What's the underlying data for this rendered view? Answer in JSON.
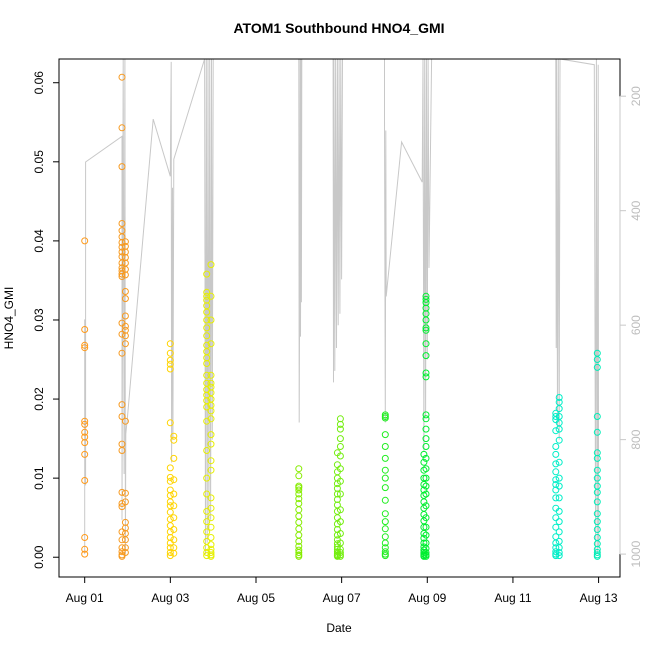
{
  "chart_data": {
    "type": "scatter",
    "title": "ATOM1 Southbound HNO4_GMI",
    "xlabel": "Date",
    "ylabel": "HNO4_GMI",
    "x_ticks": [
      "Aug 01",
      "Aug 03",
      "Aug 05",
      "Aug 07",
      "Aug 09",
      "Aug 11",
      "Aug 13"
    ],
    "x_tick_days": [
      1,
      3,
      5,
      7,
      9,
      11,
      13
    ],
    "xlim_days": [
      0.4,
      13.5
    ],
    "ylim": [
      -0.0025,
      0.063
    ],
    "y_ticks": [
      0.0,
      0.01,
      0.02,
      0.03,
      0.04,
      0.05,
      0.06
    ],
    "y_tick_labels": [
      "0.00",
      "0.01",
      "0.02",
      "0.03",
      "0.04",
      "0.05",
      "0.06"
    ],
    "y2_label": "",
    "y2_ticks": [
      200,
      400,
      600,
      800,
      1000
    ],
    "y2_lim": [
      1040,
      135
    ],
    "grid": false,
    "colors": {
      "pressure_line": "#c8c8c8",
      "aug01": "#ff9a1a",
      "aug02": "#f79a20",
      "aug03": "#ffd400",
      "aug04": "#e6ef00",
      "aug06": "#86ec00",
      "aug07": "#74ee10",
      "aug08": "#20ee20",
      "aug09": "#00ee30",
      "aug12": "#00eec8",
      "aug13": "#00eeb8"
    },
    "series": [
      {
        "day": 1.0,
        "color_key": "aug01",
        "y": [
          0.04,
          0.0288,
          0.0268,
          0.0265,
          0.0172,
          0.0168,
          0.0158,
          0.0152,
          0.0145,
          0.013,
          0.0097,
          0.0025,
          0.001,
          0.0004
        ]
      },
      {
        "day": 1.87,
        "color_key": "aug02",
        "y": [
          0.0607,
          0.0543,
          0.0494,
          0.0422,
          0.0413,
          0.0405,
          0.0398,
          0.0392,
          0.0386,
          0.038,
          0.0372,
          0.0366,
          0.0362,
          0.0358,
          0.0355,
          0.0296,
          0.0282,
          0.0258,
          0.0193,
          0.0178,
          0.0143,
          0.0135,
          0.0082,
          0.0068,
          0.0064,
          0.0032,
          0.0022,
          0.0012,
          0.0007,
          0.0003,
          0.0001
        ]
      },
      {
        "day": 1.95,
        "color_key": "aug02",
        "y": [
          0.0399,
          0.0393,
          0.0386,
          0.0379,
          0.0372,
          0.0364,
          0.0357,
          0.0336,
          0.0327,
          0.0305,
          0.0292,
          0.0287,
          0.028,
          0.027,
          0.0172,
          0.0081,
          0.007,
          0.0044,
          0.0037,
          0.003,
          0.0022,
          0.0012,
          0.0006
        ]
      },
      {
        "day": 3.0,
        "color_key": "aug03",
        "y": [
          0.027,
          0.0258,
          0.0249,
          0.0244,
          0.0238,
          0.017,
          0.0113,
          0.0101,
          0.0096,
          0.0085,
          0.0078,
          0.007,
          0.0065,
          0.0057,
          0.0048,
          0.004,
          0.0032,
          0.0025,
          0.0018,
          0.0012,
          0.0006,
          0.0002
        ]
      },
      {
        "day": 3.08,
        "color_key": "aug03",
        "y": [
          0.0153,
          0.0148,
          0.0125,
          0.0098,
          0.008,
          0.0065,
          0.005,
          0.0035,
          0.0022,
          0.0012,
          0.0005
        ]
      },
      {
        "day": 3.85,
        "color_key": "aug04",
        "y": [
          0.0358,
          0.0335,
          0.033,
          0.0325,
          0.0318,
          0.031,
          0.03,
          0.029,
          0.028,
          0.0268,
          0.026,
          0.0252,
          0.0245,
          0.023,
          0.022,
          0.0212,
          0.0205,
          0.0198,
          0.019,
          0.0172,
          0.0135,
          0.01,
          0.008,
          0.0058,
          0.0045,
          0.0032,
          0.002,
          0.0012,
          0.0006,
          0.0002
        ]
      },
      {
        "day": 3.95,
        "color_key": "aug04",
        "y": [
          0.037,
          0.033,
          0.03,
          0.027,
          0.023,
          0.022,
          0.0215,
          0.0208,
          0.02,
          0.0192,
          0.0185,
          0.0175,
          0.0155,
          0.0143,
          0.0122,
          0.011,
          0.0075,
          0.0062,
          0.005,
          0.0038,
          0.0025,
          0.0016,
          0.001,
          0.0006,
          0.0003,
          0.0001
        ]
      },
      {
        "day": 6.0,
        "color_key": "aug06",
        "y": [
          0.0112,
          0.0103,
          0.009,
          0.0088,
          0.0085,
          0.008,
          0.0074,
          0.0068,
          0.006,
          0.0052,
          0.0044,
          0.0036,
          0.0028,
          0.002,
          0.0014,
          0.0009,
          0.0006,
          0.0003,
          0.0001
        ]
      },
      {
        "day": 6.9,
        "color_key": "aug07",
        "y": [
          0.0132,
          0.0117,
          0.0108,
          0.01,
          0.0093,
          0.0087,
          0.008,
          0.0073,
          0.0066,
          0.0058,
          0.005,
          0.0042,
          0.0035,
          0.0028,
          0.0022,
          0.0017,
          0.0013,
          0.001,
          0.0007,
          0.0005,
          0.0003,
          0.0002,
          0.0001
        ]
      },
      {
        "day": 6.97,
        "color_key": "aug07",
        "y": [
          0.0175,
          0.0168,
          0.0162,
          0.015,
          0.014,
          0.0128,
          0.0112,
          0.0096,
          0.008,
          0.006,
          0.0045,
          0.003,
          0.0018,
          0.001,
          0.0006,
          0.0003,
          0.0001
        ]
      },
      {
        "day": 8.02,
        "color_key": "aug08",
        "y": [
          0.018,
          0.0178,
          0.0176,
          0.0155,
          0.014,
          0.0125,
          0.011,
          0.01,
          0.0088,
          0.0072,
          0.0055,
          0.0045,
          0.0036,
          0.0026,
          0.0018,
          0.0012,
          0.0007,
          0.0004,
          0.0002
        ]
      },
      {
        "day": 8.92,
        "color_key": "aug09",
        "y": [
          0.013,
          0.012,
          0.011,
          0.01,
          0.0092,
          0.0085,
          0.0078,
          0.007,
          0.0062,
          0.0054,
          0.0046,
          0.0038,
          0.003,
          0.0024,
          0.0018,
          0.0013,
          0.0009,
          0.0006,
          0.0004,
          0.0002,
          0.0001
        ]
      },
      {
        "day": 8.97,
        "color_key": "aug09",
        "y": [
          0.033,
          0.0326,
          0.0322,
          0.0315,
          0.0308,
          0.03,
          0.029,
          0.0287,
          0.027,
          0.0255,
          0.0233,
          0.0228,
          0.018,
          0.0175,
          0.0162,
          0.015,
          0.014,
          0.0125,
          0.0112,
          0.01,
          0.009,
          0.008,
          0.0065,
          0.005,
          0.0038,
          0.0028,
          0.0018,
          0.0011,
          0.0006,
          0.0003,
          0.0001
        ]
      },
      {
        "day": 12.0,
        "color_key": "aug12",
        "y": [
          0.0182,
          0.0178,
          0.0174,
          0.016,
          0.014,
          0.013,
          0.0118,
          0.0108,
          0.0098,
          0.0092,
          0.0085,
          0.0075,
          0.0062,
          0.005,
          0.0038,
          0.0026,
          0.0018,
          0.0012,
          0.0007,
          0.0004,
          0.0002
        ]
      },
      {
        "day": 12.08,
        "color_key": "aug12",
        "y": [
          0.0202,
          0.0196,
          0.0188,
          0.0178,
          0.017,
          0.0162,
          0.0148,
          0.012,
          0.01,
          0.009,
          0.0075,
          0.0058,
          0.0045,
          0.0032,
          0.002,
          0.0012,
          0.0006,
          0.0002
        ]
      },
      {
        "day": 12.97,
        "color_key": "aug13",
        "y": [
          0.0258,
          0.025,
          0.024,
          0.0178,
          0.0158,
          0.0132,
          0.0125,
          0.011,
          0.01,
          0.009,
          0.0082,
          0.007,
          0.0055,
          0.0045,
          0.0035,
          0.0025,
          0.0017,
          0.001,
          0.0006,
          0.0003,
          0.0001
        ]
      }
    ],
    "pressure_path": [
      [
        1.0,
        1000
      ],
      [
        1.0,
        590
      ],
      [
        1.02,
        880
      ],
      [
        1.02,
        315
      ],
      [
        1.87,
        270
      ],
      [
        1.87,
        940
      ],
      [
        1.9,
        135
      ],
      [
        1.92,
        860
      ],
      [
        1.94,
        135
      ],
      [
        1.95,
        1000
      ],
      [
        1.96,
        790
      ],
      [
        2.0,
        760
      ],
      [
        2.6,
        240
      ],
      [
        3.0,
        340
      ],
      [
        3.02,
        140
      ],
      [
        3.03,
        840
      ],
      [
        3.05,
        360
      ],
      [
        3.06,
        800
      ],
      [
        3.08,
        310
      ],
      [
        3.8,
        135
      ],
      [
        3.82,
        1000
      ],
      [
        3.84,
        135
      ],
      [
        3.86,
        980
      ],
      [
        3.88,
        135
      ],
      [
        3.9,
        960
      ],
      [
        3.92,
        135
      ],
      [
        3.94,
        940
      ],
      [
        3.96,
        135
      ],
      [
        3.98,
        800
      ],
      [
        4.0,
        135
      ],
      [
        4.9,
        135
      ],
      [
        5.3,
        135
      ],
      [
        6.0,
        135
      ],
      [
        6.01,
        770
      ],
      [
        6.02,
        520
      ],
      [
        6.03,
        135
      ],
      [
        6.04,
        620
      ],
      [
        6.05,
        135
      ],
      [
        6.06,
        560
      ],
      [
        6.07,
        135
      ],
      [
        6.8,
        135
      ],
      [
        6.81,
        700
      ],
      [
        6.82,
        135
      ],
      [
        6.84,
        680
      ],
      [
        6.86,
        135
      ],
      [
        6.88,
        640
      ],
      [
        6.9,
        135
      ],
      [
        6.92,
        600
      ],
      [
        6.94,
        135
      ],
      [
        6.96,
        580
      ],
      [
        6.98,
        135
      ],
      [
        7.0,
        520
      ],
      [
        7.02,
        135
      ],
      [
        8.0,
        135
      ],
      [
        8.0,
        240
      ],
      [
        8.02,
        770
      ],
      [
        8.03,
        260
      ],
      [
        8.04,
        550
      ],
      [
        8.4,
        280
      ],
      [
        8.88,
        350
      ],
      [
        8.9,
        135
      ],
      [
        8.92,
        820
      ],
      [
        8.94,
        135
      ],
      [
        8.96,
        760
      ],
      [
        8.98,
        135
      ],
      [
        9.0,
        660
      ],
      [
        9.02,
        135
      ],
      [
        9.04,
        500
      ],
      [
        9.1,
        135
      ],
      [
        11.9,
        135
      ],
      [
        12.0,
        135
      ],
      [
        12.01,
        640
      ],
      [
        12.02,
        135
      ],
      [
        12.04,
        780
      ],
      [
        12.06,
        135
      ],
      [
        12.08,
        800
      ],
      [
        12.1,
        135
      ],
      [
        12.9,
        145
      ],
      [
        12.93,
        1000
      ],
      [
        12.95,
        135
      ],
      [
        12.97,
        1000
      ],
      [
        12.99,
        145
      ],
      [
        13.0,
        990
      ]
    ]
  }
}
